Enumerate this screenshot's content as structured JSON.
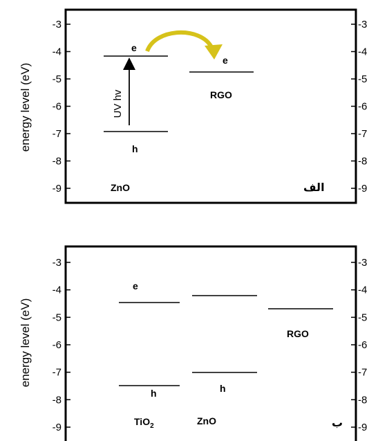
{
  "chart_data": [
    {
      "type": "energy-level-diagram",
      "panel_label": "الف",
      "ylabel": "energy level (eV)",
      "ylim": [
        -9.5,
        -2.5
      ],
      "yticks": [
        -3,
        -4,
        -5,
        -6,
        -7,
        -8,
        -9
      ],
      "ytick_labels": [
        "-3",
        "-4",
        "-5",
        "-6",
        "-7",
        "-8",
        "-9"
      ],
      "materials": [
        {
          "name": "ZnO",
          "cb": -4.2,
          "vb": -6.9,
          "cb_label": "e",
          "vb_label": "h"
        },
        {
          "name": "RGO",
          "level": -4.75,
          "level_label": "e"
        }
      ],
      "excitation_label": "UV hv"
    },
    {
      "type": "energy-level-diagram",
      "panel_label": "ب",
      "ylabel": "energy level (eV)",
      "ylim": [
        -9.5,
        -2.5
      ],
      "yticks": [
        -3,
        -4,
        -5,
        -6,
        -7,
        -8,
        -9
      ],
      "ytick_labels": [
        "-3",
        "-4",
        "-5",
        "-6",
        "-7",
        "-8",
        "-9"
      ],
      "materials": [
        {
          "name": "TiO",
          "subscript": "2",
          "cb": -4.4,
          "vb": -7.45,
          "cb_label": "e",
          "vb_label": "h"
        },
        {
          "name": "ZnO",
          "cb": -4.2,
          "vb": -6.95,
          "vb_label": "h"
        },
        {
          "name": "RGO",
          "level": -4.6
        }
      ]
    }
  ]
}
